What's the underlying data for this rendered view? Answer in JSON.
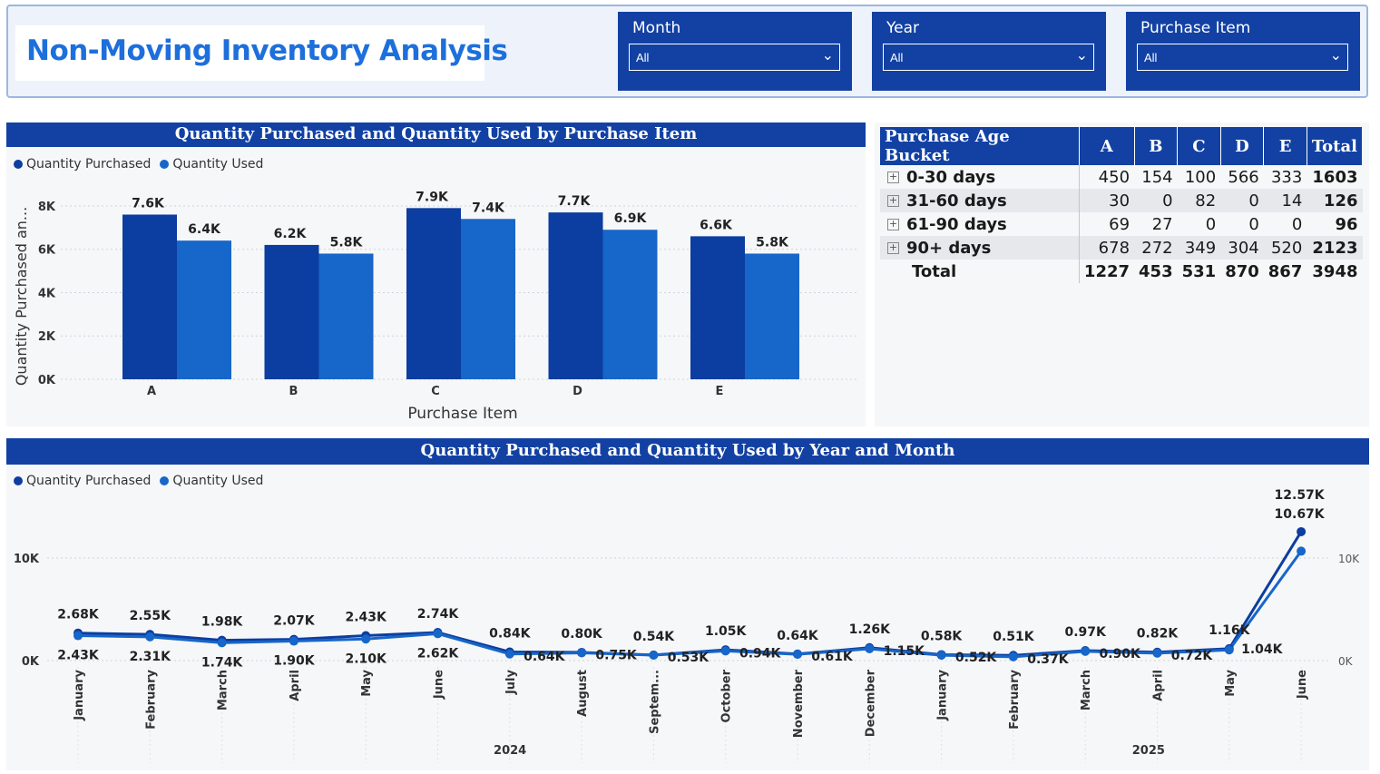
{
  "title": "Non-Moving Inventory Analysis",
  "slicers": [
    {
      "label": "Month",
      "value": "All"
    },
    {
      "label": "Year",
      "value": "All"
    },
    {
      "label": "Purchase Item",
      "value": "All"
    }
  ],
  "colors": {
    "purchased": "#0c3da0",
    "used": "#1766c9",
    "header": "#1241a3",
    "title": "#1d6fdc"
  },
  "bar_panel": {
    "title": "Quantity Purchased and Quantity Used by Purchase Item",
    "legend": [
      "Quantity Purchased",
      "Quantity Used"
    ]
  },
  "line_panel": {
    "title": "Quantity Purchased and Quantity Used by Year and Month",
    "legend": [
      "Quantity Purchased",
      "Quantity Used"
    ]
  },
  "matrix": {
    "columns": [
      "Purchase Age Bucket",
      "A",
      "B",
      "C",
      "D",
      "E",
      "Total"
    ],
    "rows": [
      {
        "bucket": "0-30 days",
        "values": [
          "450",
          "154",
          "100",
          "566",
          "333"
        ],
        "total": "1603"
      },
      {
        "bucket": "31-60 days",
        "values": [
          "30",
          "0",
          "82",
          "0",
          "14"
        ],
        "total": "126"
      },
      {
        "bucket": "61-90 days",
        "values": [
          "69",
          "27",
          "0",
          "0",
          "0"
        ],
        "total": "96"
      },
      {
        "bucket": "90+ days",
        "values": [
          "678",
          "272",
          "349",
          "304",
          "520"
        ],
        "total": "2123"
      }
    ],
    "total_row": {
      "label": "Total",
      "values": [
        "1227",
        "453",
        "531",
        "870",
        "867"
      ],
      "total": "3948"
    }
  },
  "chart_data": [
    {
      "type": "bar",
      "title": "Quantity Purchased and Quantity Used by Purchase Item",
      "xlabel": "Purchase Item",
      "ylabel": "Quantity Purchased an...",
      "categories": [
        "A",
        "B",
        "C",
        "D",
        "E"
      ],
      "series": [
        {
          "name": "Quantity Purchased",
          "values": [
            7600,
            6200,
            7900,
            7700,
            6600
          ],
          "labels": [
            "7.6K",
            "6.2K",
            "7.9K",
            "7.7K",
            "6.6K"
          ]
        },
        {
          "name": "Quantity Used",
          "values": [
            6400,
            5800,
            7400,
            6900,
            5800
          ],
          "labels": [
            "6.4K",
            "5.8K",
            "7.4K",
            "6.9K",
            "5.8K"
          ]
        }
      ],
      "yticks": [
        "0K",
        "2K",
        "4K",
        "6K",
        "8K"
      ],
      "ylim": [
        0,
        8500
      ],
      "grid": true,
      "legend": "top-left"
    },
    {
      "type": "line",
      "title": "Quantity Purchased and Quantity Used by Year and Month",
      "x": [
        "January",
        "February",
        "March",
        "April",
        "May",
        "June",
        "July",
        "August",
        "Septem...",
        "October",
        "November",
        "December",
        "January",
        "February",
        "March",
        "April",
        "May",
        "June"
      ],
      "years": [
        {
          "label": "2024"
        },
        {
          "label": "2025"
        }
      ],
      "series": [
        {
          "name": "Quantity Purchased",
          "values": [
            2680,
            2550,
            1980,
            2070,
            2430,
            2740,
            840,
            800,
            540,
            1050,
            640,
            1260,
            580,
            510,
            970,
            820,
            1160,
            12570
          ],
          "labels": [
            "2.68K",
            "2.55K",
            "1.98K",
            "2.07K",
            "2.43K",
            "2.74K",
            "0.84K",
            "0.80K",
            "0.54K",
            "1.05K",
            "0.64K",
            "1.26K",
            "0.58K",
            "0.51K",
            "0.97K",
            "0.82K",
            "1.16K",
            "12.57K"
          ]
        },
        {
          "name": "Quantity Used",
          "values": [
            2430,
            2310,
            1740,
            1900,
            2100,
            2620,
            640,
            750,
            530,
            940,
            610,
            1150,
            520,
            370,
            900,
            720,
            1040,
            10670
          ],
          "labels": [
            "2.43K",
            "2.31K",
            "1.74K",
            "1.90K",
            "2.10K",
            "2.62K",
            "0.64K",
            "0.75K",
            "0.53K",
            "0.94K",
            "0.61K",
            "1.15K",
            "0.52K",
            "0.37K",
            "0.90K",
            "0.72K",
            "1.04K",
            "10.67K"
          ]
        }
      ],
      "yticks_left": [
        "0K",
        "10K"
      ],
      "yticks_right": [
        "0K",
        "10K"
      ],
      "ylim": [
        0,
        13000
      ],
      "grid": true,
      "legend": "top-left"
    }
  ]
}
